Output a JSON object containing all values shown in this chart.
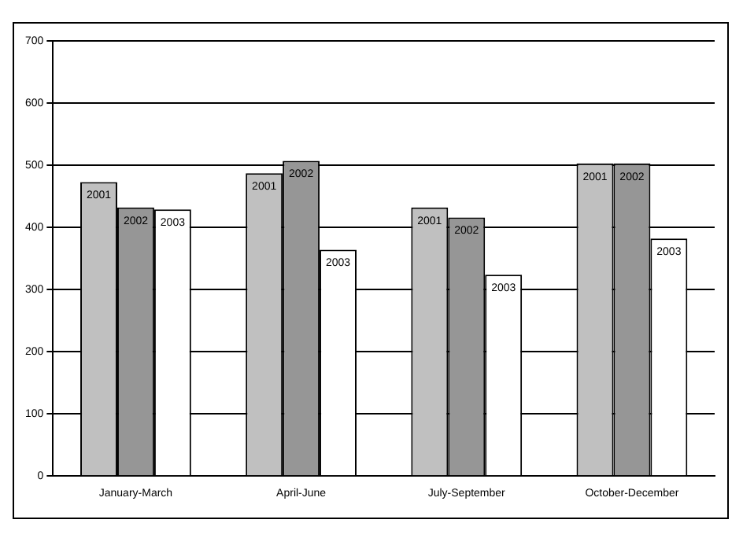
{
  "chart_data": {
    "type": "bar",
    "categories": [
      "January-March",
      "April-June",
      "July-September",
      "October-December"
    ],
    "series": [
      {
        "name": "2001",
        "color": "#c0c0c0",
        "values": [
          473,
          487,
          432,
          503
        ]
      },
      {
        "name": "2002",
        "color": "#969696",
        "values": [
          432,
          507,
          416,
          503
        ]
      },
      {
        "name": "2003",
        "color": "#ffffff",
        "values": [
          429,
          364,
          324,
          382
        ]
      }
    ],
    "ylim": [
      0,
      700
    ],
    "yticks": [
      0,
      100,
      200,
      300,
      400,
      500,
      600,
      700
    ],
    "grid": "y",
    "legend": false
  }
}
